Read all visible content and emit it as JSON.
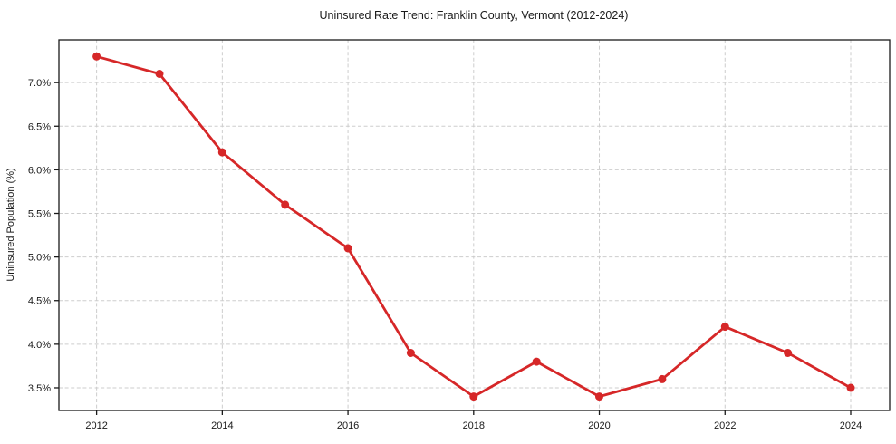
{
  "figure": {
    "background": "#ffffff"
  },
  "chart_data": {
    "type": "line",
    "title": "Uninsured Rate Trend: Franklin County, Vermont (2012-2024)",
    "xlabel": "",
    "ylabel": "Uninsured Population (%)",
    "x": [
      2012,
      2013,
      2014,
      2015,
      2016,
      2017,
      2018,
      2019,
      2020,
      2021,
      2022,
      2023,
      2024
    ],
    "values": [
      7.3,
      7.1,
      6.2,
      5.6,
      5.1,
      3.9,
      3.4,
      3.8,
      3.4,
      3.6,
      4.2,
      3.9,
      3.5
    ],
    "xticks": [
      2012,
      2014,
      2016,
      2018,
      2020,
      2022,
      2024
    ],
    "xtick_labels": [
      "2012",
      "2014",
      "2016",
      "2018",
      "2020",
      "2022",
      "2024"
    ],
    "yticks": [
      3.5,
      4.0,
      4.5,
      5.0,
      5.5,
      6.0,
      6.5,
      7.0
    ],
    "ytick_labels": [
      "3.5%",
      "4.0%",
      "4.5%",
      "5.0%",
      "5.5%",
      "6.0%",
      "6.5%",
      "7.0%"
    ],
    "xlim": [
      2011.4,
      2024.62
    ],
    "ylim": [
      3.24,
      7.49
    ],
    "grid": true,
    "grid_style": "dashed",
    "legend": "none",
    "line_color": "#d62728",
    "marker": "circle"
  }
}
